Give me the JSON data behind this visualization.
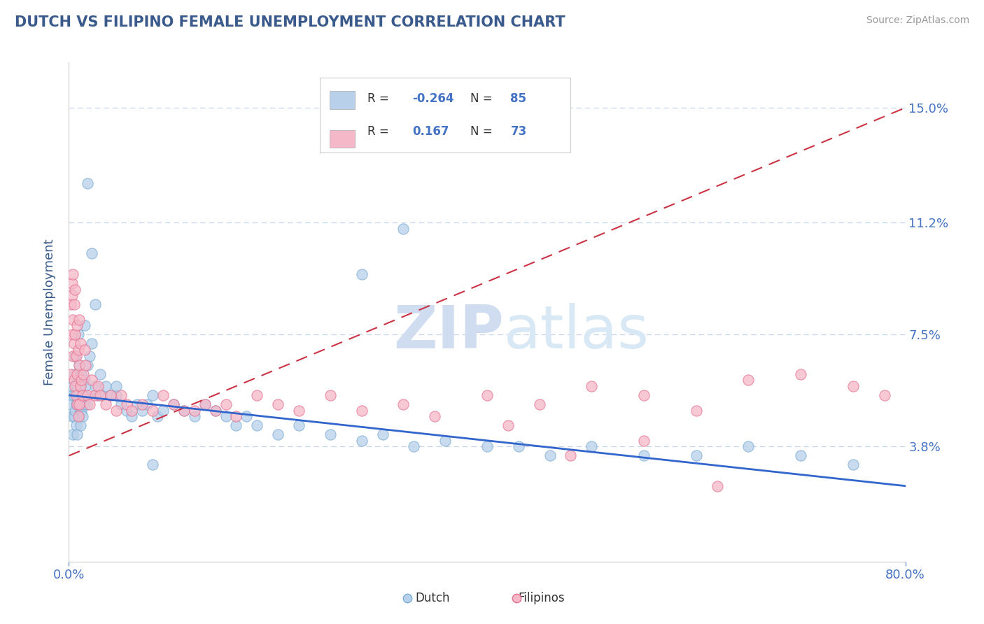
{
  "title": "DUTCH VS FILIPINO FEMALE UNEMPLOYMENT CORRELATION CHART",
  "source": "Source: ZipAtlas.com",
  "ylabel": "Female Unemployment",
  "xlim": [
    0.0,
    80.0
  ],
  "ylim": [
    0.0,
    16.5
  ],
  "yticks": [
    3.8,
    7.5,
    11.2,
    15.0
  ],
  "xtick_labels": [
    "0.0%",
    "80.0%"
  ],
  "ytick_labels": [
    "3.8%",
    "7.5%",
    "11.2%",
    "15.0%"
  ],
  "dutch_R": -0.264,
  "dutch_N": 85,
  "filipino_R": 0.167,
  "filipino_N": 73,
  "dutch_color": "#b8d0ea",
  "dutch_edge_color": "#7aadd4",
  "filipino_color": "#f5b8c8",
  "filipino_edge_color": "#e87090",
  "dutch_line_color": "#3366cc",
  "filipino_line_color": "#cc3344",
  "title_color": "#3a5a8c",
  "axis_label_color": "#3a5a8c",
  "tick_color": "#4472C4",
  "background_color": "#ffffff",
  "grid_color": "#c8d4e8",
  "watermark_color": "#d0ddf0",
  "legend_box_color": "#e8eef8",
  "dutch_x": [
    0.2,
    0.3,
    0.3,
    0.4,
    0.4,
    0.5,
    0.5,
    0.5,
    0.6,
    0.6,
    0.7,
    0.7,
    0.8,
    0.8,
    0.9,
    0.9,
    1.0,
    1.0,
    1.0,
    1.1,
    1.1,
    1.1,
    1.2,
    1.2,
    1.3,
    1.3,
    1.4,
    1.5,
    1.5,
    1.6,
    1.7,
    1.8,
    2.0,
    2.2,
    2.5,
    2.8,
    3.0,
    3.2,
    3.5,
    4.0,
    4.5,
    5.0,
    5.5,
    6.0,
    6.5,
    7.0,
    7.5,
    8.0,
    8.5,
    9.0,
    10.0,
    11.0,
    12.0,
    13.0,
    14.0,
    15.0,
    16.0,
    17.0,
    18.0,
    20.0,
    22.0,
    25.0,
    28.0,
    30.0,
    33.0,
    36.0,
    40.0,
    43.0,
    46.0,
    50.0,
    55.0,
    60.0,
    65.0,
    70.0,
    75.0,
    32.0,
    28.0,
    8.0,
    4.5,
    1.8,
    2.2,
    2.5,
    1.5,
    0.9,
    0.6
  ],
  "dutch_y": [
    5.2,
    4.8,
    5.5,
    4.2,
    5.8,
    5.5,
    6.2,
    4.8,
    5.0,
    6.8,
    4.5,
    5.2,
    5.8,
    4.2,
    5.5,
    6.0,
    4.8,
    5.2,
    6.5,
    5.0,
    5.8,
    4.5,
    6.2,
    5.0,
    5.5,
    4.8,
    5.2,
    6.0,
    5.5,
    5.8,
    5.2,
    6.5,
    6.8,
    7.2,
    5.8,
    5.5,
    6.2,
    5.5,
    5.8,
    5.5,
    5.5,
    5.2,
    5.0,
    4.8,
    5.2,
    5.0,
    5.2,
    5.5,
    4.8,
    5.0,
    5.2,
    5.0,
    4.8,
    5.2,
    5.0,
    4.8,
    4.5,
    4.8,
    4.5,
    4.2,
    4.5,
    4.2,
    4.0,
    4.2,
    3.8,
    4.0,
    3.8,
    3.8,
    3.5,
    3.8,
    3.5,
    3.5,
    3.8,
    3.5,
    3.2,
    11.0,
    9.5,
    3.2,
    5.8,
    12.5,
    10.2,
    8.5,
    7.8,
    7.5,
    6.8
  ],
  "filipino_x": [
    0.2,
    0.2,
    0.3,
    0.3,
    0.3,
    0.4,
    0.4,
    0.4,
    0.5,
    0.5,
    0.5,
    0.6,
    0.6,
    0.6,
    0.7,
    0.7,
    0.8,
    0.8,
    0.8,
    0.9,
    0.9,
    1.0,
    1.0,
    1.0,
    1.1,
    1.1,
    1.2,
    1.3,
    1.4,
    1.5,
    1.6,
    1.8,
    2.0,
    2.2,
    2.5,
    2.8,
    3.0,
    3.5,
    4.0,
    4.5,
    5.0,
    5.5,
    6.0,
    7.0,
    8.0,
    9.0,
    10.0,
    11.0,
    12.0,
    13.0,
    14.0,
    15.0,
    16.0,
    18.0,
    20.0,
    22.0,
    25.0,
    28.0,
    32.0,
    35.0,
    40.0,
    45.0,
    50.0,
    55.0,
    60.0,
    65.0,
    70.0,
    75.0,
    78.0,
    42.0,
    48.0,
    55.0,
    62.0
  ],
  "filipino_y": [
    8.5,
    6.2,
    9.2,
    7.5,
    8.8,
    8.0,
    9.5,
    6.8,
    7.2,
    8.5,
    6.0,
    5.8,
    7.5,
    9.0,
    5.5,
    6.8,
    7.8,
    6.2,
    5.2,
    4.8,
    7.0,
    6.5,
    5.2,
    8.0,
    5.8,
    7.2,
    6.0,
    5.5,
    6.2,
    7.0,
    6.5,
    5.5,
    5.2,
    6.0,
    5.5,
    5.8,
    5.5,
    5.2,
    5.5,
    5.0,
    5.5,
    5.2,
    5.0,
    5.2,
    5.0,
    5.5,
    5.2,
    5.0,
    5.0,
    5.2,
    5.0,
    5.2,
    4.8,
    5.5,
    5.2,
    5.0,
    5.5,
    5.0,
    5.2,
    4.8,
    5.5,
    5.2,
    5.8,
    5.5,
    5.0,
    6.0,
    6.2,
    5.8,
    5.5,
    4.5,
    3.5,
    4.0,
    2.5
  ],
  "dutch_reg_x0": 0.0,
  "dutch_reg_y0": 5.5,
  "dutch_reg_x1": 80.0,
  "dutch_reg_y1": 2.5,
  "filipino_reg_x0": 0.0,
  "filipino_reg_y0": 3.5,
  "filipino_reg_x1": 80.0,
  "filipino_reg_y1": 15.0
}
